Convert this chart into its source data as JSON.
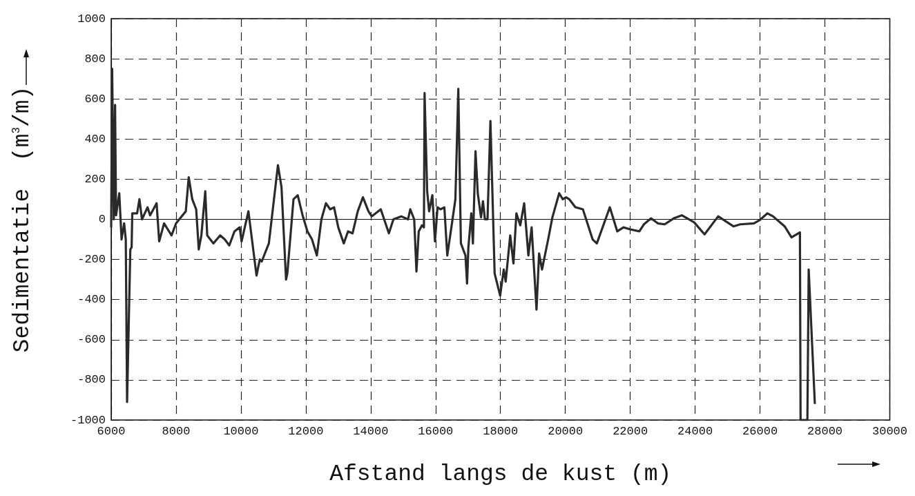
{
  "chart_data": {
    "type": "line",
    "xlabel": "Afstand langs de kust (m)",
    "ylabel": "Sedimentatie  (m$^{3}$/m)",
    "xlim": [
      6000,
      30000
    ],
    "xticks": [
      6000,
      8000,
      10000,
      12000,
      14000,
      16000,
      18000,
      20000,
      22000,
      24000,
      26000,
      28000,
      30000
    ],
    "ylim": [
      -1000,
      1000
    ],
    "yticks": [
      -1000,
      -800,
      -600,
      -400,
      -200,
      0,
      200,
      400,
      600,
      800,
      1000
    ],
    "grid": true,
    "series": [
      {
        "color": "#2a2a2a",
        "x": [
          6000,
          6030,
          6080,
          6120,
          6150,
          6250,
          6320,
          6400,
          6450,
          6490,
          6590,
          6630,
          6650,
          6800,
          6870,
          6950,
          7120,
          7200,
          7400,
          7480,
          7630,
          7860,
          8000,
          8300,
          8390,
          8500,
          8620,
          8700,
          8780,
          8900,
          8960,
          9150,
          9360,
          9500,
          9640,
          9800,
          9960,
          10020,
          10230,
          10480,
          10580,
          10640,
          10860,
          11140,
          11250,
          11390,
          11430,
          11620,
          11750,
          11900,
          12050,
          12190,
          12340,
          12480,
          12620,
          12750,
          12870,
          13000,
          13170,
          13300,
          13440,
          13600,
          13760,
          13930,
          14030,
          14310,
          14560,
          14700,
          14940,
          15150,
          15220,
          15340,
          15410,
          15480,
          15580,
          15640,
          15660,
          15740,
          15800,
          15900,
          15980,
          16060,
          16150,
          16270,
          16360,
          16460,
          16610,
          16700,
          16780,
          16920,
          16970,
          17010,
          17100,
          17150,
          17230,
          17300,
          17400,
          17460,
          17520,
          17600,
          17690,
          17820,
          17990,
          18100,
          18160,
          18300,
          18400,
          18490,
          18610,
          18730,
          18860,
          18960,
          19110,
          19190,
          19280,
          19470,
          19600,
          19810,
          19920,
          20020,
          20120,
          20310,
          20540,
          20840,
          20970,
          21370,
          21600,
          21790,
          22000,
          22280,
          22420,
          22640,
          22850,
          23060,
          23340,
          23590,
          23970,
          24290,
          24710,
          25180,
          25390,
          25810,
          25980,
          26230,
          26400,
          26760,
          26970,
          27230,
          27250,
          27460,
          27500,
          27690
        ],
        "values": [
          -40,
          750,
          0,
          570,
          20,
          130,
          -100,
          -20,
          -100,
          -910,
          -150,
          -140,
          30,
          30,
          100,
          0,
          60,
          20,
          80,
          -110,
          -20,
          -80,
          -20,
          40,
          210,
          100,
          50,
          -150,
          -80,
          140,
          -80,
          -120,
          -80,
          -100,
          -130,
          -60,
          -40,
          -110,
          40,
          -280,
          -200,
          -210,
          -120,
          270,
          160,
          -300,
          -270,
          100,
          120,
          20,
          -60,
          -100,
          -180,
          0,
          80,
          50,
          60,
          -40,
          -120,
          -60,
          -70,
          40,
          110,
          40,
          15,
          50,
          -70,
          0,
          15,
          0,
          50,
          0,
          -260,
          -60,
          -30,
          -40,
          630,
          140,
          40,
          120,
          -110,
          60,
          50,
          60,
          -180,
          -70,
          100,
          650,
          -120,
          -180,
          -320,
          -140,
          30,
          -120,
          340,
          130,
          10,
          90,
          0,
          0,
          490,
          -270,
          -380,
          -250,
          -310,
          -80,
          -220,
          30,
          -30,
          80,
          -180,
          -40,
          -450,
          -170,
          -250,
          -100,
          10,
          130,
          100,
          110,
          100,
          60,
          50,
          -100,
          -120,
          60,
          -60,
          -40,
          -50,
          -60,
          -25,
          5,
          -20,
          -25,
          5,
          20,
          -15,
          -75,
          15,
          -35,
          -25,
          -20,
          -5,
          30,
          15,
          -35,
          -90,
          -65,
          -1000,
          -1000,
          -250,
          -920
        ]
      }
    ]
  }
}
